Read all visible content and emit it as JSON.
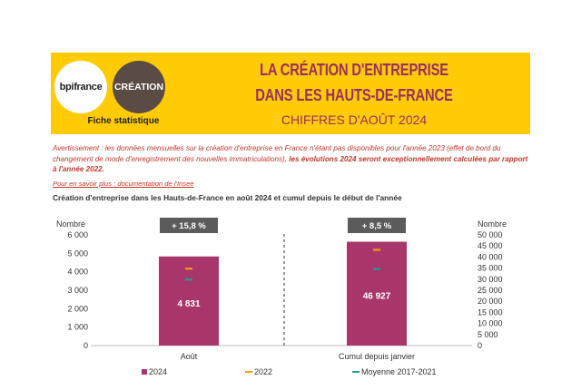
{
  "header": {
    "logo_bpi": "bpifrance",
    "logo_creation": "CRÉATION",
    "fiche": "Fiche statistique",
    "title_line1": "LA CRÉATION D'ENTREPRISE",
    "title_line2": "DANS LES HAUTS-DE-FRANCE",
    "title_line3": "CHIFFRES D'AOÛT 2024"
  },
  "notice": {
    "text": "Avertissement : les données mensuelles sur la création d'entreprise en France n'étant pas disponibles pour l'année 2023 (effet de bord du changement de mode d'enregistrement des nouvelles immatriculations),",
    "emphasis": "les évolutions 2024 seront exceptionnellement calculées par rapport à l'année 2022.",
    "link": "Pour en savoir plus : documentation de l'Insee"
  },
  "chart_title": "Création d'entreprise dans les Hauts-de-France  en août 2024 et cumul depuis le début de l'année",
  "colors": {
    "bar": "#a8366b",
    "y2022": "#f39c12",
    "moyenne": "#1a9e8f",
    "badge": "#5b5b5b",
    "banner": "#ffcb05",
    "title": "#9b2e5e"
  },
  "chart_data": {
    "type": "bar",
    "categories": [
      "Août",
      "Cumul depuis janvier"
    ],
    "left_axis": {
      "label": "Nombre",
      "ylim": [
        0,
        6000
      ],
      "ticks": [
        "0",
        "1 000",
        "2 000",
        "3 000",
        "4 000",
        "5 000",
        "6 000"
      ]
    },
    "right_axis": {
      "label": "Nombre",
      "ylim": [
        0,
        50000
      ],
      "ticks": [
        "0",
        "5 000",
        "10 000",
        "15 000",
        "20 000",
        "25 000",
        "30 000",
        "35 000",
        "40 000",
        "45 000",
        "50 000"
      ]
    },
    "series": [
      {
        "name": "2024",
        "values": [
          4831,
          46927
        ],
        "labels": [
          "4 831",
          "46 927"
        ]
      },
      {
        "name": "2022",
        "values": [
          4170,
          43250
        ]
      },
      {
        "name": "Moyenne 2017-2021",
        "values": [
          3580,
          34600
        ]
      }
    ],
    "badges": [
      "+ 15,8 %",
      "+ 8,5 %"
    ],
    "legend": [
      "2024",
      "2022",
      "Moyenne 2017-2021"
    ],
    "legend_position": "bottom"
  }
}
